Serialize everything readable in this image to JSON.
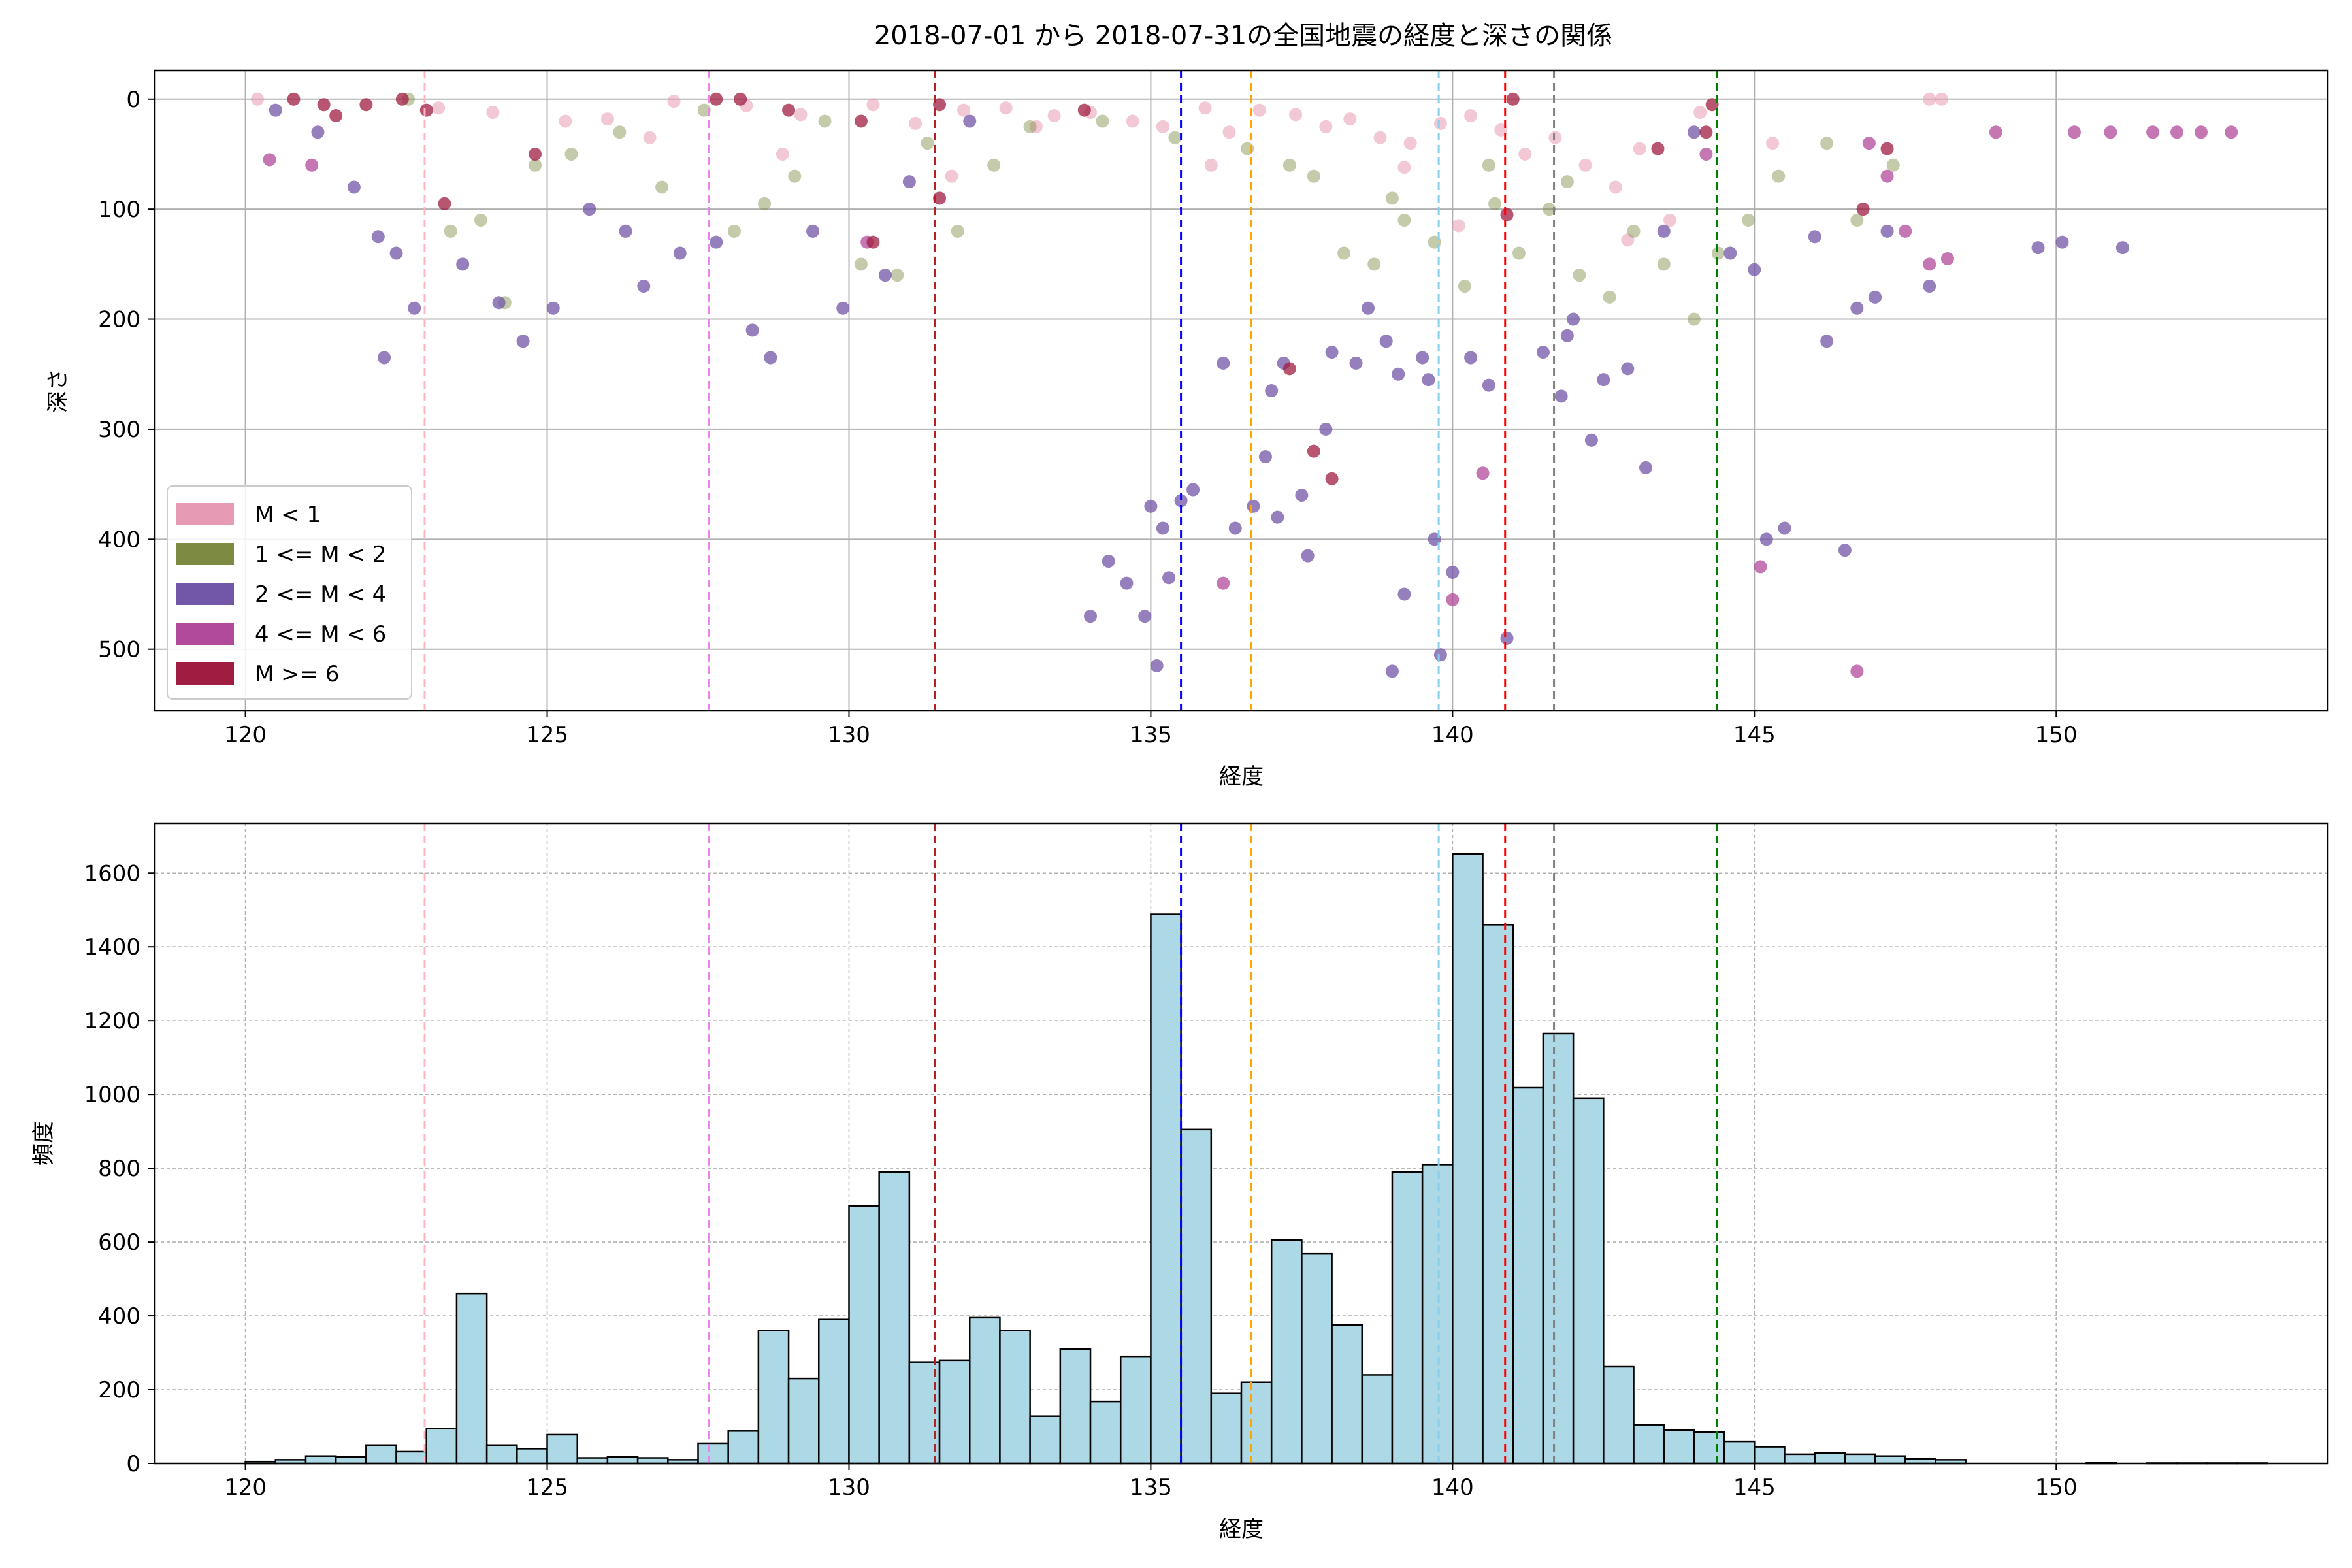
{
  "chart_data": [
    {
      "type": "scatter",
      "title": "2018-07-01 から 2018-07-31の全国地震の経度と深さの関係",
      "xlabel": "経度",
      "ylabel": "深さ",
      "xlim": [
        118.5,
        154.5
      ],
      "ylim": [
        556,
        -26
      ],
      "y_inverted": true,
      "xticks": [
        120,
        125,
        130,
        135,
        140,
        145,
        150
      ],
      "yticks": [
        0,
        100,
        200,
        300,
        400,
        500
      ],
      "grid": true,
      "legend_position": "lower-left",
      "series": [
        {
          "name": "M < 1",
          "color": "#e79ab3",
          "points": [
            [
              120.2,
              0
            ],
            [
              123.2,
              8
            ],
            [
              124.1,
              12
            ],
            [
              125.3,
              20
            ],
            [
              126.0,
              18
            ],
            [
              127.1,
              2
            ],
            [
              128.3,
              6
            ],
            [
              129.2,
              14
            ],
            [
              130.4,
              5
            ],
            [
              131.1,
              22
            ],
            [
              131.9,
              10
            ],
            [
              132.6,
              8
            ],
            [
              133.4,
              15
            ],
            [
              134.0,
              12
            ],
            [
              134.7,
              20
            ],
            [
              135.2,
              25
            ],
            [
              135.9,
              8
            ],
            [
              136.3,
              30
            ],
            [
              136.8,
              10
            ],
            [
              137.4,
              14
            ],
            [
              137.9,
              25
            ],
            [
              138.3,
              18
            ],
            [
              138.8,
              35
            ],
            [
              139.3,
              40
            ],
            [
              139.8,
              22
            ],
            [
              140.3,
              15
            ],
            [
              140.8,
              28
            ],
            [
              141.2,
              50
            ],
            [
              141.7,
              35
            ],
            [
              142.2,
              60
            ],
            [
              142.7,
              80
            ],
            [
              143.1,
              45
            ],
            [
              143.6,
              110
            ],
            [
              144.1,
              12
            ],
            [
              145.3,
              40
            ],
            [
              147.9,
              0
            ],
            [
              148.1,
              0
            ],
            [
              126.7,
              35
            ],
            [
              128.9,
              50
            ],
            [
              133.1,
              25
            ],
            [
              136.0,
              60
            ],
            [
              139.2,
              62
            ],
            [
              140.1,
              115
            ],
            [
              131.7,
              70
            ],
            [
              142.9,
              128
            ]
          ]
        },
        {
          "name": "1 <= M < 2",
          "color": "#7d8b42",
          "points": [
            [
              122.7,
              0
            ],
            [
              123.4,
              120
            ],
            [
              123.9,
              110
            ],
            [
              124.3,
              185
            ],
            [
              124.8,
              60
            ],
            [
              125.4,
              50
            ],
            [
              126.2,
              30
            ],
            [
              126.9,
              80
            ],
            [
              127.6,
              10
            ],
            [
              128.1,
              120
            ],
            [
              128.6,
              95
            ],
            [
              129.1,
              70
            ],
            [
              129.6,
              20
            ],
            [
              130.2,
              150
            ],
            [
              130.8,
              160
            ],
            [
              131.3,
              40
            ],
            [
              131.8,
              120
            ],
            [
              132.4,
              60
            ],
            [
              133.0,
              25
            ],
            [
              134.2,
              20
            ],
            [
              135.4,
              35
            ],
            [
              136.6,
              45
            ],
            [
              137.3,
              60
            ],
            [
              137.7,
              70
            ],
            [
              138.2,
              140
            ],
            [
              138.7,
              150
            ],
            [
              139.2,
              110
            ],
            [
              139.7,
              130
            ],
            [
              140.2,
              170
            ],
            [
              140.7,
              95
            ],
            [
              141.1,
              140
            ],
            [
              141.6,
              100
            ],
            [
              142.1,
              160
            ],
            [
              142.6,
              180
            ],
            [
              143.0,
              120
            ],
            [
              143.5,
              150
            ],
            [
              144.0,
              200
            ],
            [
              144.4,
              140
            ],
            [
              144.9,
              110
            ],
            [
              145.4,
              70
            ],
            [
              146.2,
              40
            ],
            [
              146.7,
              110
            ],
            [
              147.3,
              60
            ],
            [
              140.6,
              60
            ],
            [
              139.0,
              90
            ],
            [
              141.9,
              75
            ]
          ]
        },
        {
          "name": "2 <= M < 4",
          "color": "#7256a7",
          "points": [
            [
              120.5,
              10
            ],
            [
              121.2,
              30
            ],
            [
              121.8,
              80
            ],
            [
              122.2,
              125
            ],
            [
              122.3,
              235
            ],
            [
              122.5,
              140
            ],
            [
              122.8,
              190
            ],
            [
              123.6,
              150
            ],
            [
              124.2,
              185
            ],
            [
              124.6,
              220
            ],
            [
              125.1,
              190
            ],
            [
              125.7,
              100
            ],
            [
              126.3,
              120
            ],
            [
              126.6,
              170
            ],
            [
              127.2,
              140
            ],
            [
              127.8,
              130
            ],
            [
              128.4,
              210
            ],
            [
              128.7,
              235
            ],
            [
              129.4,
              120
            ],
            [
              129.9,
              190
            ],
            [
              130.6,
              160
            ],
            [
              131.0,
              75
            ],
            [
              132.0,
              20
            ],
            [
              134.0,
              470
            ],
            [
              134.3,
              420
            ],
            [
              134.6,
              440
            ],
            [
              134.9,
              470
            ],
            [
              135.0,
              370
            ],
            [
              135.2,
              390
            ],
            [
              135.5,
              365
            ],
            [
              135.7,
              355
            ],
            [
              135.1,
              515
            ],
            [
              135.3,
              435
            ],
            [
              136.4,
              390
            ],
            [
              136.7,
              370
            ],
            [
              136.9,
              325
            ],
            [
              137.0,
              265
            ],
            [
              137.2,
              240
            ],
            [
              137.1,
              380
            ],
            [
              137.5,
              360
            ],
            [
              137.6,
              415
            ],
            [
              137.9,
              300
            ],
            [
              138.0,
              230
            ],
            [
              138.4,
              240
            ],
            [
              138.6,
              190
            ],
            [
              138.9,
              220
            ],
            [
              139.1,
              250
            ],
            [
              139.5,
              235
            ],
            [
              139.6,
              255
            ],
            [
              139.7,
              400
            ],
            [
              139.0,
              520
            ],
            [
              139.2,
              450
            ],
            [
              139.8,
              505
            ],
            [
              140.0,
              430
            ],
            [
              140.3,
              235
            ],
            [
              140.6,
              260
            ],
            [
              140.9,
              490
            ],
            [
              141.5,
              230
            ],
            [
              141.8,
              270
            ],
            [
              142.0,
              200
            ],
            [
              142.3,
              310
            ],
            [
              142.5,
              255
            ],
            [
              142.9,
              245
            ],
            [
              143.2,
              335
            ],
            [
              143.5,
              120
            ],
            [
              144.0,
              30
            ],
            [
              144.6,
              140
            ],
            [
              145.0,
              155
            ],
            [
              145.2,
              400
            ],
            [
              145.5,
              390
            ],
            [
              146.0,
              125
            ],
            [
              146.2,
              220
            ],
            [
              146.5,
              410
            ],
            [
              146.7,
              190
            ],
            [
              147.0,
              180
            ],
            [
              147.2,
              120
            ],
            [
              147.9,
              170
            ],
            [
              149.7,
              135
            ],
            [
              150.1,
              130
            ],
            [
              151.1,
              135
            ],
            [
              136.2,
              240
            ],
            [
              141.9,
              215
            ]
          ]
        },
        {
          "name": "4 <= M < 6",
          "color": "#b24a9b",
          "points": [
            [
              120.4,
              55
            ],
            [
              121.1,
              60
            ],
            [
              130.3,
              130
            ],
            [
              136.2,
              440
            ],
            [
              140.0,
              455
            ],
            [
              140.5,
              340
            ],
            [
              144.2,
              50
            ],
            [
              145.1,
              425
            ],
            [
              146.7,
              520
            ],
            [
              147.2,
              70
            ],
            [
              147.5,
              120
            ],
            [
              147.9,
              150
            ],
            [
              148.2,
              145
            ],
            [
              149.0,
              30
            ],
            [
              150.3,
              30
            ],
            [
              150.9,
              30
            ],
            [
              151.6,
              30
            ],
            [
              152.0,
              30
            ],
            [
              152.4,
              30
            ],
            [
              152.9,
              30
            ],
            [
              146.9,
              40
            ]
          ]
        },
        {
          "name": "M >= 6",
          "color": "#a01c41",
          "points": [
            [
              120.8,
              0
            ],
            [
              121.3,
              5
            ],
            [
              121.5,
              15
            ],
            [
              122.0,
              5
            ],
            [
              122.6,
              0
            ],
            [
              123.0,
              10
            ],
            [
              123.3,
              95
            ],
            [
              124.8,
              50
            ],
            [
              127.8,
              0
            ],
            [
              128.2,
              0
            ],
            [
              129.0,
              10
            ],
            [
              130.2,
              20
            ],
            [
              130.4,
              130
            ],
            [
              131.5,
              5
            ],
            [
              131.5,
              90
            ],
            [
              133.9,
              10
            ],
            [
              137.3,
              245
            ],
            [
              137.7,
              320
            ],
            [
              138.0,
              345
            ],
            [
              140.9,
              105
            ],
            [
              141.0,
              0
            ],
            [
              143.4,
              45
            ],
            [
              144.3,
              5
            ],
            [
              144.2,
              30
            ],
            [
              146.8,
              100
            ],
            [
              147.2,
              45
            ]
          ]
        }
      ],
      "vlines": [
        {
          "x": 122.97,
          "color": "#ffb6c1"
        },
        {
          "x": 127.68,
          "color": "#ee82ee"
        },
        {
          "x": 131.42,
          "color": "#b22222"
        },
        {
          "x": 135.5,
          "color": "#0000ff"
        },
        {
          "x": 136.66,
          "color": "#ffa500"
        },
        {
          "x": 139.77,
          "color": "#87ceeb"
        },
        {
          "x": 140.87,
          "color": "#ff0000"
        },
        {
          "x": 141.68,
          "color": "#808080"
        },
        {
          "x": 144.38,
          "color": "#008000"
        }
      ]
    },
    {
      "type": "bar",
      "title": "",
      "xlabel": "経度",
      "ylabel": "頻度",
      "xlim": [
        118.5,
        154.5
      ],
      "ylim": [
        0,
        1735
      ],
      "xticks": [
        120,
        125,
        130,
        135,
        140,
        145,
        150
      ],
      "yticks": [
        0,
        200,
        400,
        600,
        800,
        1000,
        1200,
        1400,
        1600
      ],
      "grid": true,
      "bar_color": "#add8e6",
      "bin_start": 120.0,
      "bin_width": 0.5,
      "values": [
        5,
        10,
        20,
        18,
        50,
        32,
        95,
        460,
        50,
        40,
        78,
        15,
        18,
        15,
        10,
        55,
        88,
        360,
        230,
        390,
        698,
        790,
        275,
        280,
        395,
        360,
        128,
        310,
        168,
        290,
        1488,
        905,
        190,
        220,
        605,
        568,
        375,
        240,
        790,
        810,
        1652,
        1460,
        1018,
        1165,
        990,
        262,
        105,
        90,
        85,
        60,
        45,
        25,
        28,
        25,
        20,
        12,
        10,
        0,
        0,
        0,
        0,
        2,
        0,
        1,
        1,
        1,
        1
      ]
    }
  ],
  "colors": {
    "scatter_alpha": 0.7,
    "bar_edge": "#000000"
  }
}
